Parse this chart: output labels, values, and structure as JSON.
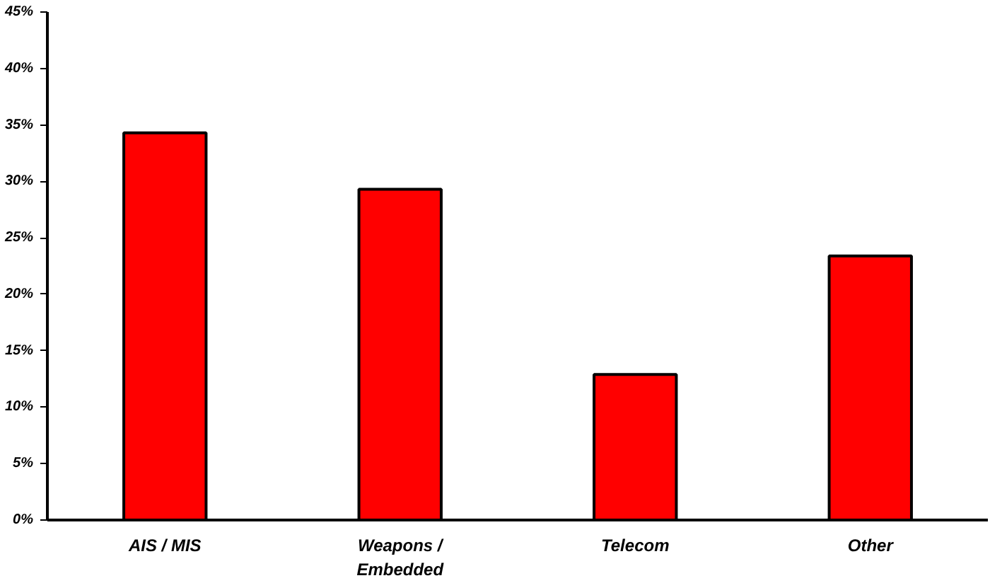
{
  "chart_data": {
    "type": "bar",
    "categories": [
      "AIS / MIS",
      "Weapons /\nEmbedded",
      "Telecom",
      "Other"
    ],
    "values": [
      34.3,
      29.3,
      12.9,
      23.4
    ],
    "color": "#ff0000",
    "ylim": [
      0,
      45
    ],
    "yticks": [
      {
        "value": 0,
        "label": "0%"
      },
      {
        "value": 5,
        "label": "5%"
      },
      {
        "value": 10,
        "label": "10%"
      },
      {
        "value": 15,
        "label": "15%"
      },
      {
        "value": 20,
        "label": "20%"
      },
      {
        "value": 25,
        "label": "25%"
      },
      {
        "value": 30,
        "label": "30%"
      },
      {
        "value": 35,
        "label": "35%"
      },
      {
        "value": 40,
        "label": "40%"
      },
      {
        "value": 45,
        "label": "45%"
      }
    ],
    "grid": false
  }
}
